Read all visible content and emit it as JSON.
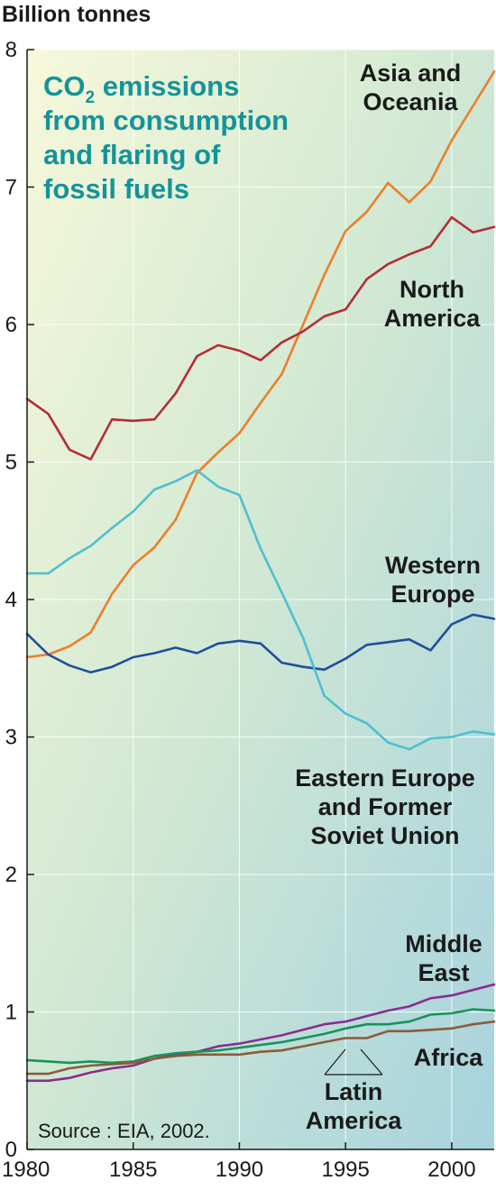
{
  "chart_data": {
    "type": "line",
    "title_parts": {
      "pre": "CO",
      "sub": "2",
      "post": " emissions"
    },
    "title_lines": [
      "from consumption",
      "and flaring of",
      "fossil fuels"
    ],
    "ylabel": "Billion tonnes",
    "source": "Source : EIA, 2002.",
    "xlim": [
      1980,
      2002
    ],
    "ylim": [
      0,
      8
    ],
    "x_ticks": [
      "1980",
      "1985",
      "1990",
      "1995",
      "2000"
    ],
    "y_ticks": [
      "0",
      "1",
      "2",
      "3",
      "4",
      "5",
      "6",
      "7",
      "8"
    ],
    "x": [
      1980,
      1981,
      1982,
      1983,
      1984,
      1985,
      1986,
      1987,
      1988,
      1989,
      1990,
      1991,
      1992,
      1993,
      1994,
      1995,
      1996,
      1997,
      1998,
      1999,
      2000,
      2001,
      2002
    ],
    "series": [
      {
        "name_lines": [
          "Asia and",
          "Oceania"
        ],
        "color": "#ec7f2a",
        "values": [
          3.58,
          3.6,
          3.66,
          3.76,
          4.04,
          4.25,
          4.38,
          4.58,
          4.92,
          5.07,
          5.21,
          5.43,
          5.64,
          6.0,
          6.36,
          6.68,
          6.82,
          7.03,
          6.89,
          7.04,
          7.34,
          7.59,
          7.84
        ]
      },
      {
        "name_lines": [
          "North",
          "America"
        ],
        "color": "#b42d34",
        "values": [
          5.46,
          5.35,
          5.09,
          5.02,
          5.31,
          5.3,
          5.31,
          5.5,
          5.77,
          5.85,
          5.81,
          5.74,
          5.87,
          5.95,
          6.06,
          6.11,
          6.33,
          6.44,
          6.51,
          6.57,
          6.78,
          6.67,
          6.71
        ]
      },
      {
        "name_lines": [
          "Western",
          "Europe"
        ],
        "color": "#1f4e9c",
        "values": [
          3.75,
          3.6,
          3.52,
          3.47,
          3.51,
          3.58,
          3.61,
          3.65,
          3.61,
          3.68,
          3.7,
          3.68,
          3.54,
          3.51,
          3.49,
          3.57,
          3.67,
          3.69,
          3.71,
          3.63,
          3.82,
          3.89,
          3.86
        ]
      },
      {
        "name_lines": [
          "Eastern Europe",
          "and Former",
          "Soviet Union"
        ],
        "color": "#4fbfd0",
        "values": [
          4.19,
          4.19,
          4.3,
          4.39,
          4.52,
          4.64,
          4.8,
          4.86,
          4.94,
          4.82,
          4.76,
          4.37,
          4.05,
          3.72,
          3.3,
          3.17,
          3.1,
          2.96,
          2.91,
          2.99,
          3.0,
          3.04,
          3.02
        ]
      },
      {
        "name_lines": [
          "Middle",
          "East"
        ],
        "color": "#8c2c8e",
        "values": [
          0.5,
          0.5,
          0.52,
          0.56,
          0.59,
          0.61,
          0.66,
          0.69,
          0.71,
          0.75,
          0.77,
          0.8,
          0.83,
          0.87,
          0.91,
          0.93,
          0.97,
          1.01,
          1.04,
          1.1,
          1.12,
          1.16,
          1.2
        ]
      },
      {
        "name_lines": [
          "Latin",
          "America"
        ],
        "color": "#18935a",
        "values": [
          0.65,
          0.64,
          0.63,
          0.64,
          0.63,
          0.64,
          0.68,
          0.7,
          0.71,
          0.72,
          0.74,
          0.76,
          0.78,
          0.81,
          0.84,
          0.88,
          0.91,
          0.91,
          0.93,
          0.98,
          0.99,
          1.02,
          1.01
        ]
      },
      {
        "name_lines": [
          "Africa"
        ],
        "color": "#8c5b3a",
        "values": [
          0.55,
          0.55,
          0.59,
          0.61,
          0.62,
          0.63,
          0.66,
          0.68,
          0.69,
          0.69,
          0.69,
          0.71,
          0.72,
          0.75,
          0.78,
          0.81,
          0.81,
          0.86,
          0.86,
          0.87,
          0.88,
          0.91,
          0.93
        ]
      }
    ]
  }
}
